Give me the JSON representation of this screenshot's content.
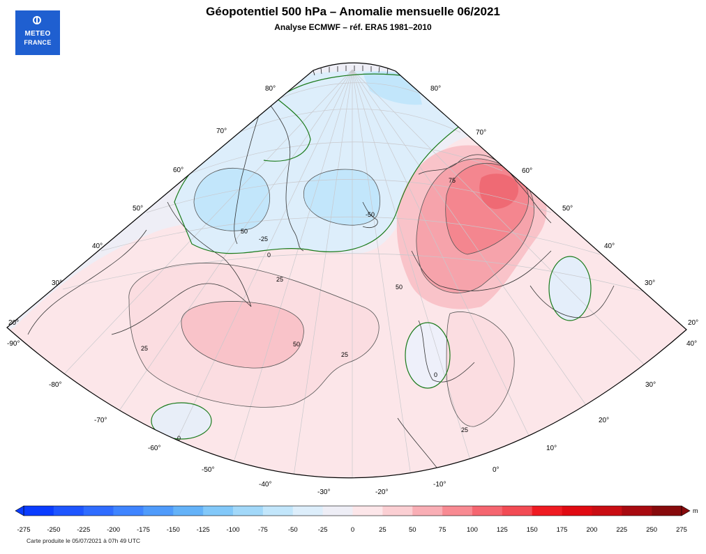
{
  "header": {
    "title": "Géopotentiel 500 hPa – Anomalie mensuelle 06/2021",
    "subtitle": "Analyse ECMWF – réf. ERA5 1981–2010"
  },
  "logo": {
    "line1": "METEO",
    "line2": "FRANCE",
    "color": "#1f5fd0"
  },
  "map": {
    "latitude_labels_left": [
      "80°",
      "70°",
      "60°",
      "50°",
      "40°",
      "30°",
      "20°"
    ],
    "latitude_labels_right": [
      "80°",
      "70°",
      "60°",
      "50°",
      "40°",
      "30°",
      "20°"
    ],
    "longitude_labels": [
      "-90°",
      "-80°",
      "-70°",
      "-60°",
      "-50°",
      "-40°",
      "-30°",
      "-20°",
      "-10°",
      "0°",
      "10°",
      "20°",
      "30°",
      "40°"
    ],
    "contour_labels": [
      "75",
      "50",
      "-50",
      "-25",
      "0",
      "25",
      "50",
      "25",
      "25",
      "50",
      "25",
      "0",
      "0",
      "25",
      "25"
    ],
    "zero_contour_color": "#1a7a1a",
    "contour_color": "#555555",
    "coast_color": "#333333"
  },
  "colorbar": {
    "ticks": [
      "-275",
      "-250",
      "-225",
      "-200",
      "-175",
      "-150",
      "-125",
      "-100",
      "-75",
      "-50",
      "-25",
      "0",
      "25",
      "50",
      "75",
      "100",
      "125",
      "150",
      "175",
      "200",
      "225",
      "250",
      "275"
    ],
    "colors": [
      "#0a3cff",
      "#1e55ff",
      "#2f6cff",
      "#3f84ff",
      "#4f9bfb",
      "#64b2f8",
      "#82c8f9",
      "#a2d8f9",
      "#c2e6fb",
      "#ddeefb",
      "#eeeef6",
      "#fce6e9",
      "#fbcfd3",
      "#f9aeb5",
      "#f88a92",
      "#f56670",
      "#f24b54",
      "#ef1b22",
      "#e00a12",
      "#c90d13",
      "#a80a10",
      "#870a0c"
    ],
    "unit": "m"
  },
  "footer": {
    "credit": "Carte produite le 05/07/2021 à 07h 49 UTC"
  }
}
